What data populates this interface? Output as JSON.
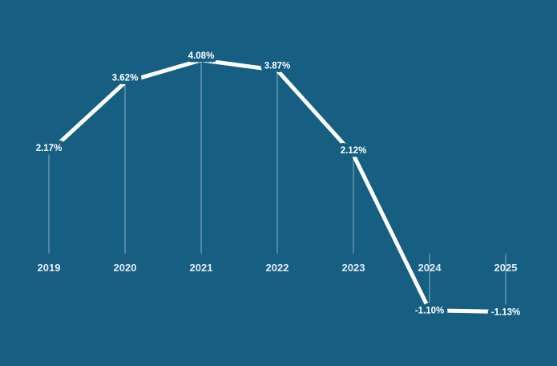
{
  "chart_data": {
    "type": "line",
    "x": [
      2019,
      2020,
      2021,
      2022,
      2023,
      2024,
      2025
    ],
    "values": [
      2.17,
      3.62,
      4.08,
      3.87,
      2.12,
      -1.1,
      -1.13
    ],
    "point_labels": [
      "2.17%",
      "3.62%",
      "4.08%",
      "3.87%",
      "2.12%",
      "-1.10%",
      "-1.13%"
    ],
    "x_tick_labels": [
      "2019",
      "2020",
      "2021",
      "2022",
      "2023",
      "2024",
      "2025"
    ],
    "title": "",
    "xlabel": "",
    "ylabel": "",
    "ylim": [
      -1.5,
      4.5
    ],
    "grid": false,
    "legend": false,
    "colors": {
      "background": "#175f82",
      "line": "#ffffff",
      "point_label": "#ffffff",
      "year_label": "#ffffff",
      "leader_line": "#ffffff"
    }
  }
}
